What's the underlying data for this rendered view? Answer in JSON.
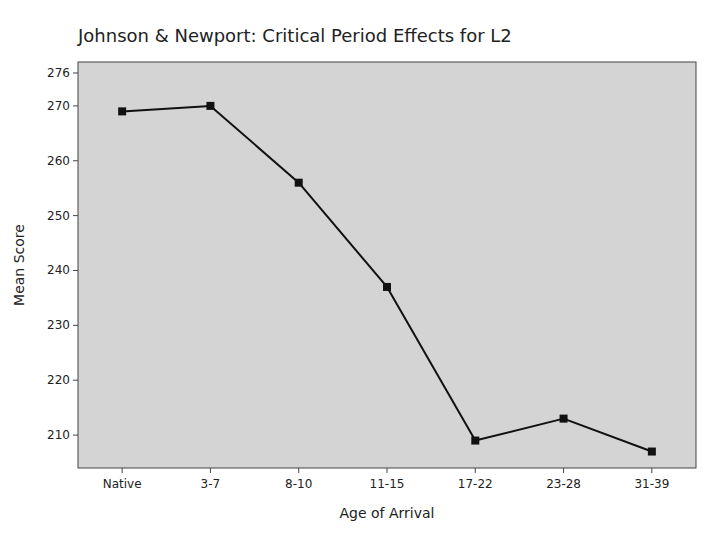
{
  "chart_data": {
    "type": "line",
    "title": "Johnson & Newport: Critical Period Effects for L2",
    "xlabel": "Age of Arrival",
    "ylabel": "Mean Score",
    "categories": [
      "Native",
      "3-7",
      "8-10",
      "11-15",
      "17-22",
      "23-28",
      "31-39"
    ],
    "values": [
      269,
      270,
      256,
      237,
      209,
      213,
      207
    ],
    "ylim": [
      204,
      278
    ],
    "yticks": [
      210,
      220,
      230,
      240,
      250,
      260,
      270,
      276
    ],
    "color": "#111111",
    "marker": "square",
    "grid": false
  }
}
